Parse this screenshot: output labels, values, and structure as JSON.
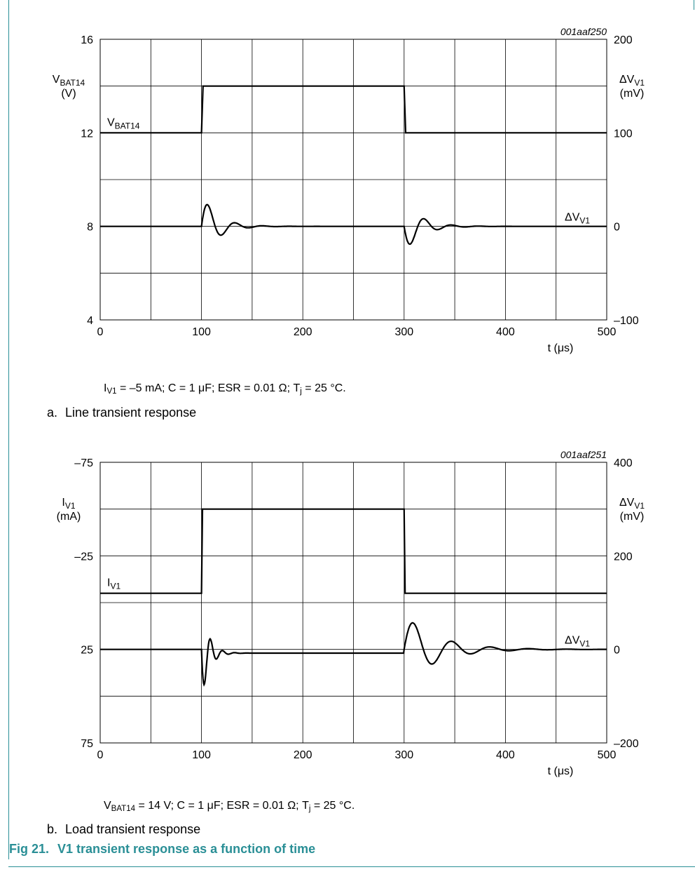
{
  "figure_caption": {
    "number": "Fig 21.",
    "title": "V1 transient response as a function of time"
  },
  "chart_data": [
    {
      "type": "line",
      "id_code": "001aaf250",
      "subcaption_letter": "a.",
      "subcaption_text": "Line transient response",
      "conditions": "I<sub>V1</sub> = –5 mA; C = 1 μF; ESR = 0.01 Ω; T<sub>j</sub> = 25 °C.",
      "xlabel": "t (μs)",
      "xlim": [
        0,
        500
      ],
      "x_ticks": [
        "0",
        "100",
        "200",
        "300",
        "400",
        "500"
      ],
      "left_axis": {
        "label": "V<sub>BAT14</sub>",
        "unit": "(V)",
        "lim": [
          4,
          16
        ],
        "ticks": [
          "16",
          "12",
          "8",
          "4"
        ]
      },
      "right_axis": {
        "label": "ΔV<sub>V1</sub>",
        "unit": "(mV)",
        "lim": [
          -100,
          200
        ],
        "ticks": [
          "200",
          "100",
          "0",
          "–100"
        ]
      },
      "grid": true,
      "series": [
        {
          "name": "V<sub>BAT14</sub>",
          "axis": "left",
          "points": [
            [
              0,
              12
            ],
            [
              100,
              12
            ],
            [
              101.5,
              14
            ],
            [
              300,
              14
            ],
            [
              301.5,
              12
            ],
            [
              500,
              12
            ]
          ]
        },
        {
          "name": "ΔV<sub>V1</sub>",
          "axis": "right",
          "step_times": [
            100,
            300
          ],
          "baseline": 0,
          "ringing": [
            {
              "start": 100,
              "amplitude": 35,
              "direction": 1,
              "period": 27,
              "decay": 15
            },
            {
              "start": 300,
              "amplitude": 28,
              "direction": -1,
              "period": 27,
              "decay": 16
            }
          ],
          "end": 500
        }
      ]
    },
    {
      "type": "line",
      "id_code": "001aaf251",
      "subcaption_letter": "b.",
      "subcaption_text": "Load transient response",
      "conditions": "V<sub>BAT14</sub> = 14 V; C = 1 μF; ESR = 0.01 Ω; T<sub>j</sub> = 25 °C.",
      "xlabel": "t (μs)",
      "xlim": [
        0,
        500
      ],
      "x_ticks": [
        "0",
        "100",
        "200",
        "300",
        "400",
        "500"
      ],
      "left_axis": {
        "label": "I<sub>V1</sub>",
        "unit": "(mA)",
        "lim": [
          75,
          -75
        ],
        "ticks": [
          "–75",
          "–25",
          "25",
          "75"
        ]
      },
      "right_axis": {
        "label": "ΔV<sub>V1</sub>",
        "unit": "(mV)",
        "lim": [
          -200,
          400
        ],
        "ticks": [
          "400",
          "200",
          "0",
          "–200"
        ]
      },
      "grid": true,
      "series": [
        {
          "name": "I<sub>V1</sub>",
          "axis": "left",
          "points": [
            [
              0,
              -5
            ],
            [
              100,
              -5
            ],
            [
              101,
              -50
            ],
            [
              300,
              -50
            ],
            [
              301,
              -5
            ],
            [
              500,
              -5
            ]
          ]
        },
        {
          "name": "ΔV<sub>V1</sub>",
          "axis": "right",
          "step_times": [
            100,
            300
          ],
          "baseline": 0,
          "ringing": [
            {
              "start": 100,
              "amplitude": 105,
              "direction": -1,
              "period": 12,
              "decay": 7,
              "offset": -8
            },
            {
              "start": 300,
              "amplitude": 75,
              "direction": 1,
              "period": 38,
              "decay": 32
            }
          ],
          "end": 500
        }
      ]
    }
  ]
}
